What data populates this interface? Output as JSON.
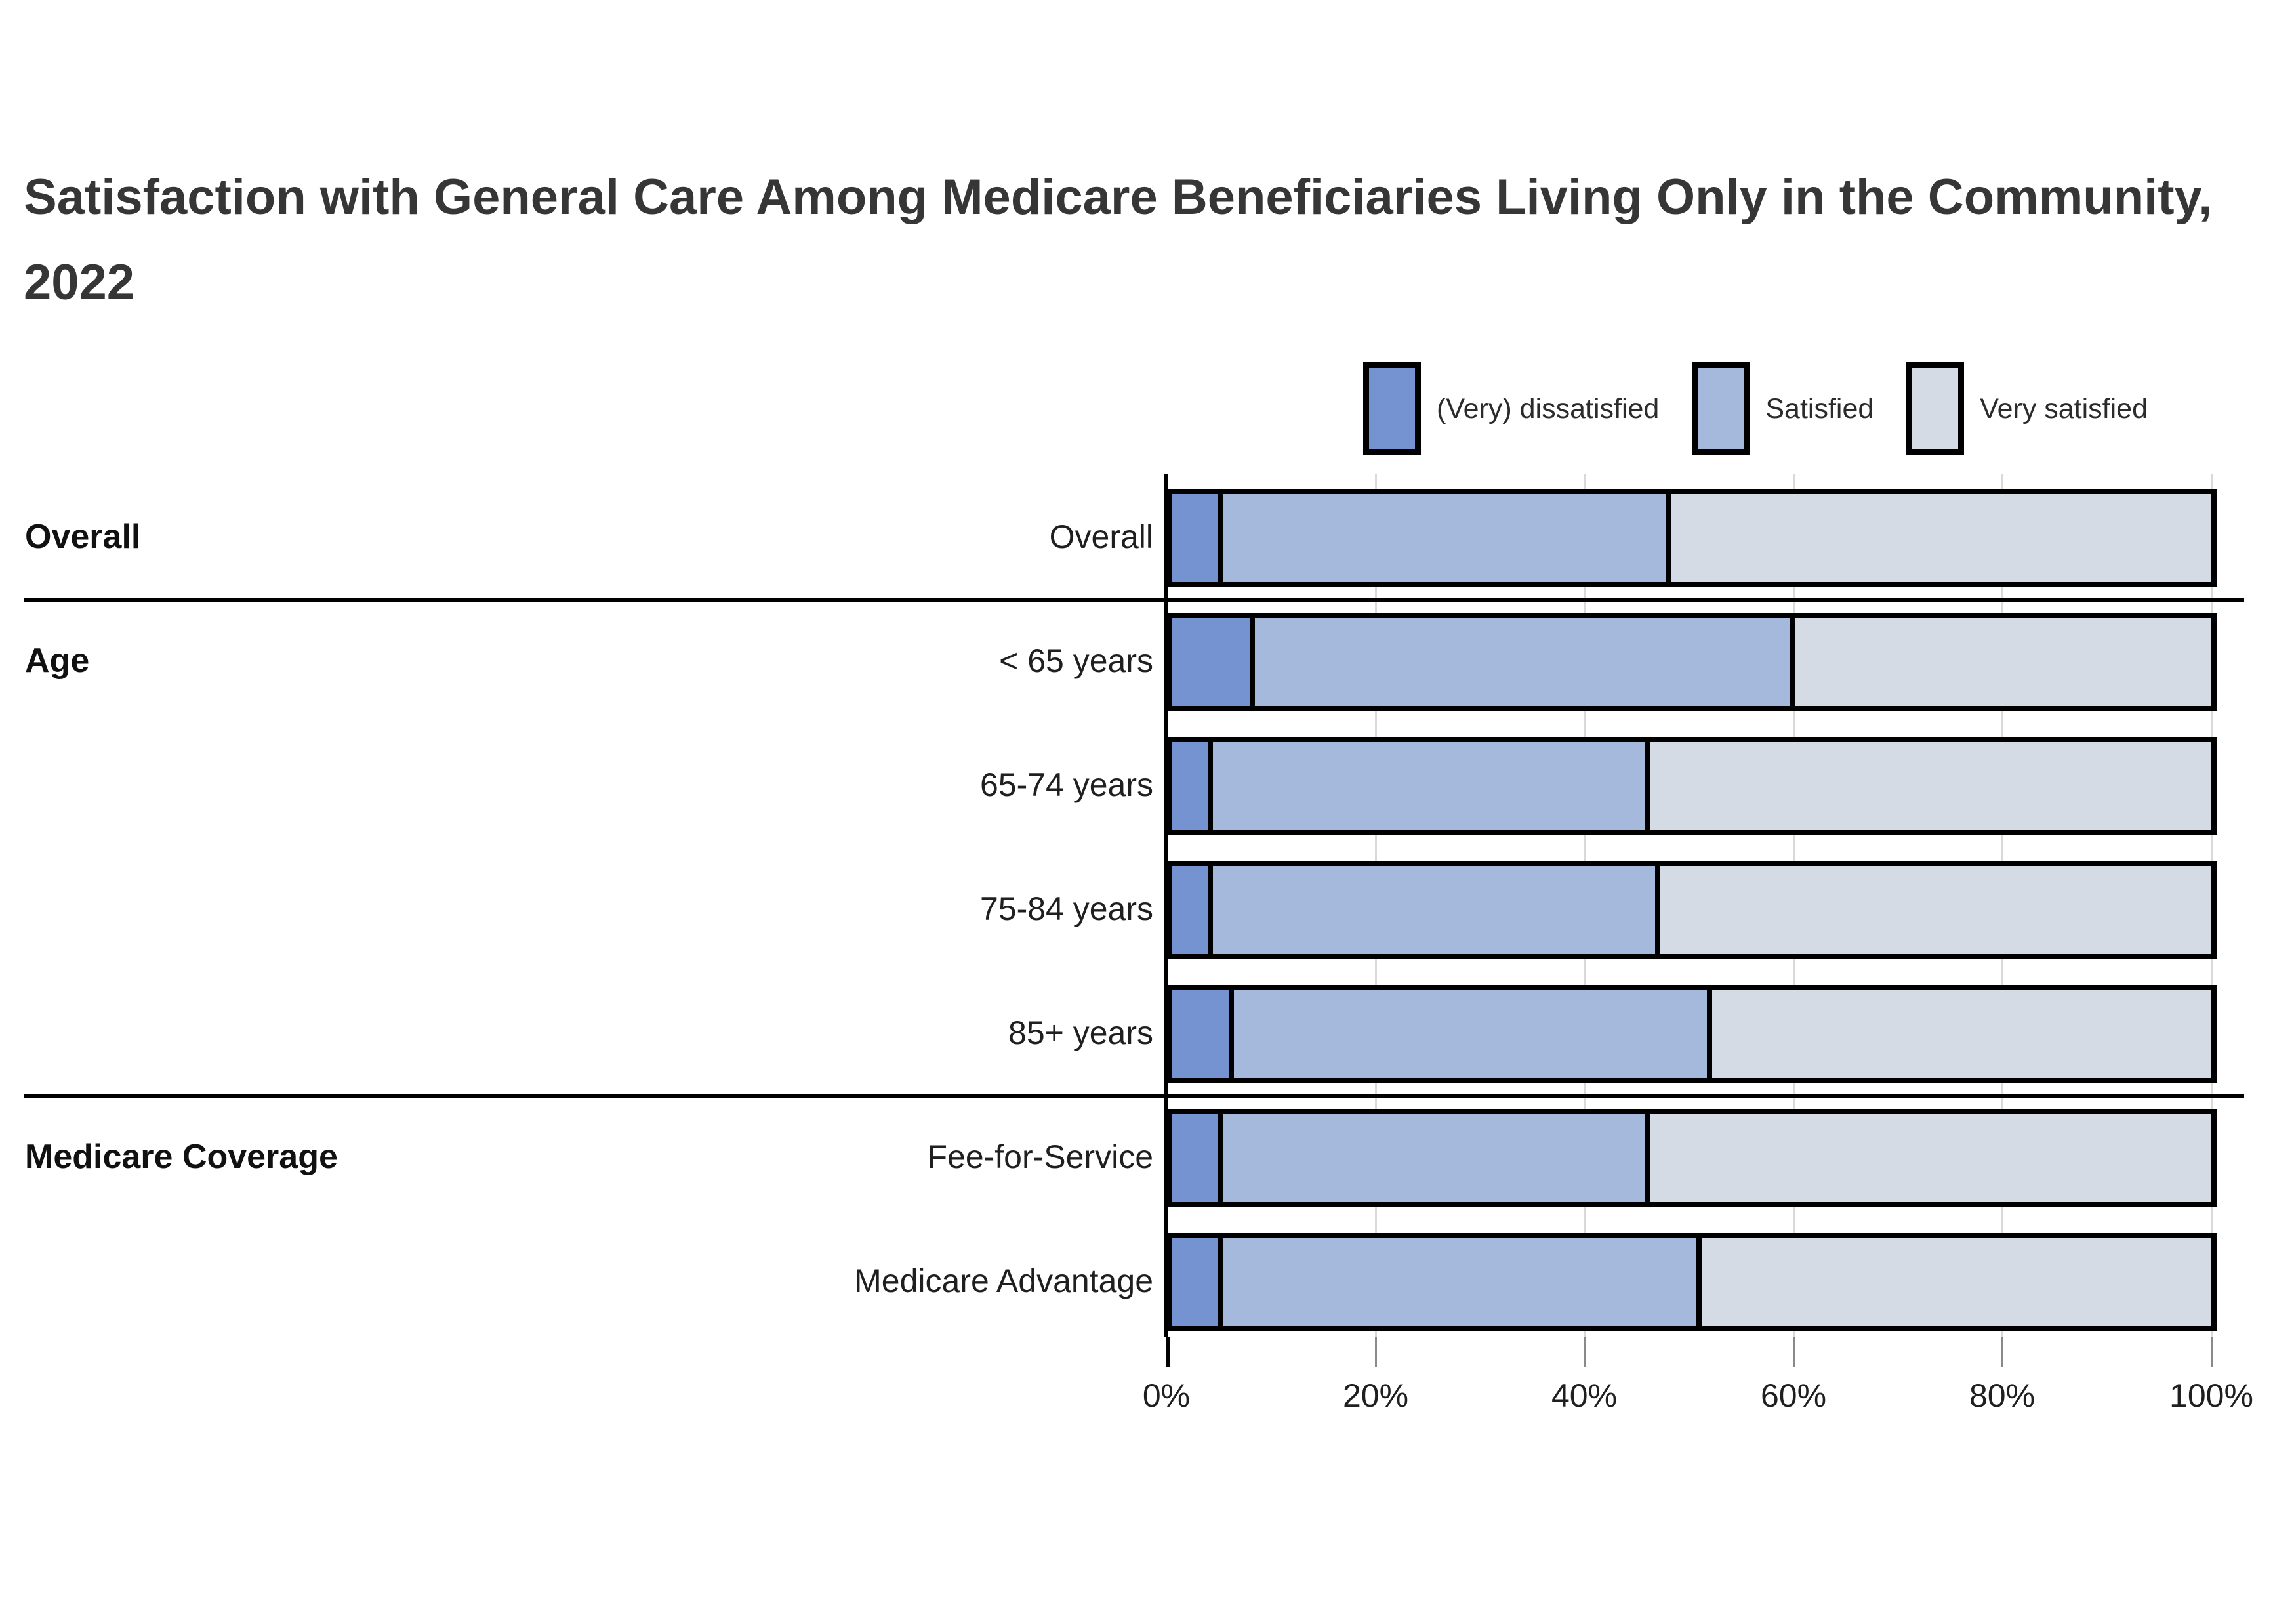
{
  "title": "Satisfaction with General Care Among Medicare Beneficiaries Living Only in the Community, 2022",
  "legend": [
    {
      "label": "(Very) dissatisfied",
      "color": "#7593d0"
    },
    {
      "label": "Satisfied",
      "color": "#a4b9dc"
    },
    {
      "label": "Very satisfied",
      "color": "#d5dbe5"
    }
  ],
  "chart_data": {
    "type": "bar",
    "orientation": "horizontal-stacked",
    "categories": [
      "Overall",
      "< 65 years",
      "65-74 years",
      "75-84 years",
      "85+ years",
      "Fee-for-Service",
      "Medicare Advantage"
    ],
    "series": [
      {
        "name": "(Very) dissatisfied",
        "color": "#7593d0",
        "values": [
          5,
          8,
          4,
          4,
          6,
          5,
          5
        ]
      },
      {
        "name": "Satisfied",
        "color": "#a4b9dc",
        "values": [
          43,
          52,
          42,
          43,
          46,
          41,
          46
        ]
      },
      {
        "name": "Very satisfied",
        "color": "#d5dbe5",
        "values": [
          52,
          40,
          54,
          53,
          48,
          54,
          49
        ]
      }
    ],
    "groups": [
      {
        "label": "Overall",
        "count": 1
      },
      {
        "label": "Age",
        "count": 4
      },
      {
        "label": "Medicare Coverage",
        "count": 2
      }
    ],
    "x_axis": {
      "ticks": [
        "0%",
        "20%",
        "40%",
        "60%",
        "80%",
        "100%"
      ],
      "range": [
        0,
        100
      ]
    },
    "grid": "vertical",
    "legend_position": "top-right"
  }
}
